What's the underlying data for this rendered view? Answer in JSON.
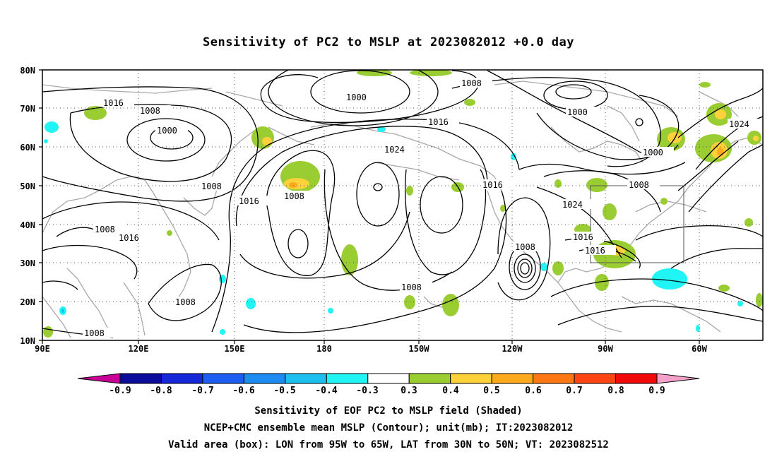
{
  "title": "Sensitivity of PC2 to MSLP at 2023082012 +0.0 day",
  "lat_labels": [
    "80N",
    "70N",
    "60N",
    "50N",
    "40N",
    "30N",
    "20N",
    "10N"
  ],
  "lon_labels": [
    "90E",
    "120E",
    "150E",
    "180",
    "150W",
    "120W",
    "90W",
    "60W"
  ],
  "contour_labels": [
    "1016",
    "1008",
    "1000",
    "1000",
    "1008",
    "1000",
    "1016",
    "1024",
    "1008",
    "1016",
    "1008",
    "1016",
    "1008",
    "1016",
    "1024",
    "1008",
    "1016",
    "1008",
    "1016",
    "1008",
    "1008",
    "1008",
    "1000",
    "1000",
    "1024",
    "1008",
    "1016",
    "1016"
  ],
  "colorbar": {
    "labels": [
      "-0.9",
      "-0.8",
      "-0.7",
      "-0.6",
      "-0.5",
      "-0.4",
      "-0.3",
      "0.3",
      "0.4",
      "0.5",
      "0.6",
      "0.7",
      "0.8",
      "0.9"
    ],
    "colors": [
      "#0b0b9c",
      "#1428d8",
      "#1e5ef0",
      "#1e8cf0",
      "#1ec0f0",
      "#20f4f4",
      "#ffffff",
      "#9acd32",
      "#ffd23c",
      "#ffaa1e",
      "#ff7814",
      "#ff4614",
      "#f00a0a"
    ],
    "left_tip": "#c80096",
    "right_tip": "#f4a0c8"
  },
  "captions": [
    "Sensitivity of EOF PC2 to MSLP field (Shaded)",
    "NCEP+CMC ensemble mean MSLP (Contour); unit(mb); IT:2023082012",
    "Valid area (box): LON from 95W to 65W, LAT from 30N to 50N; VT: 2023082512"
  ],
  "valid_box": {
    "lon_min": -95,
    "lon_max": -65,
    "lat_min": 30,
    "lat_max": 50
  },
  "map_extent": {
    "lon_min": 90,
    "lon_max": 310,
    "lat_min": 10,
    "lat_max": 80
  }
}
